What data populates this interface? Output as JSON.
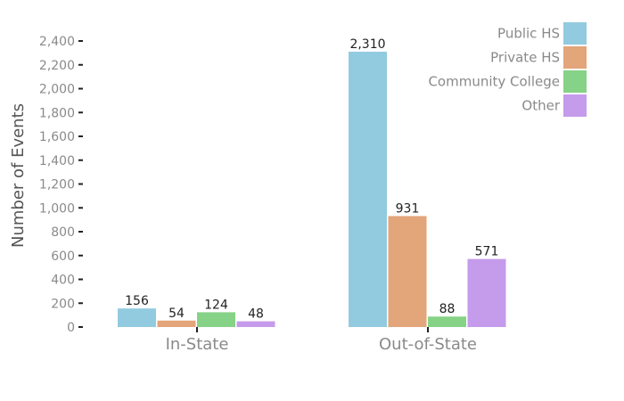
{
  "chart_data": {
    "type": "bar",
    "title": "",
    "xlabel": "",
    "ylabel": "Number of Events",
    "categories": [
      "In-State",
      "Out-of-State"
    ],
    "ylim": [
      0,
      2400
    ],
    "yticks": [
      0,
      200,
      400,
      600,
      800,
      1000,
      1200,
      1400,
      1600,
      1800,
      2000,
      2200,
      2400
    ],
    "ytick_labels": [
      "0",
      "200",
      "400",
      "600",
      "800",
      "1,000",
      "1,200",
      "1,400",
      "1,600",
      "1,800",
      "2,000",
      "2,200",
      "2,400"
    ],
    "grid": false,
    "legend_position": "top-right",
    "series": [
      {
        "name": "Public HS",
        "color": "#92cbdf",
        "values": [
          156,
          2310
        ],
        "labels": [
          "156",
          "2,310"
        ]
      },
      {
        "name": "Private HS",
        "color": "#e3a57a",
        "values": [
          54,
          931
        ],
        "labels": [
          "54",
          "931"
        ]
      },
      {
        "name": "Community College",
        "color": "#86d286",
        "values": [
          124,
          88
        ],
        "labels": [
          "124",
          "88"
        ]
      },
      {
        "name": "Other",
        "color": "#c59beb",
        "values": [
          48,
          571
        ],
        "labels": [
          "48",
          "571"
        ]
      }
    ]
  }
}
